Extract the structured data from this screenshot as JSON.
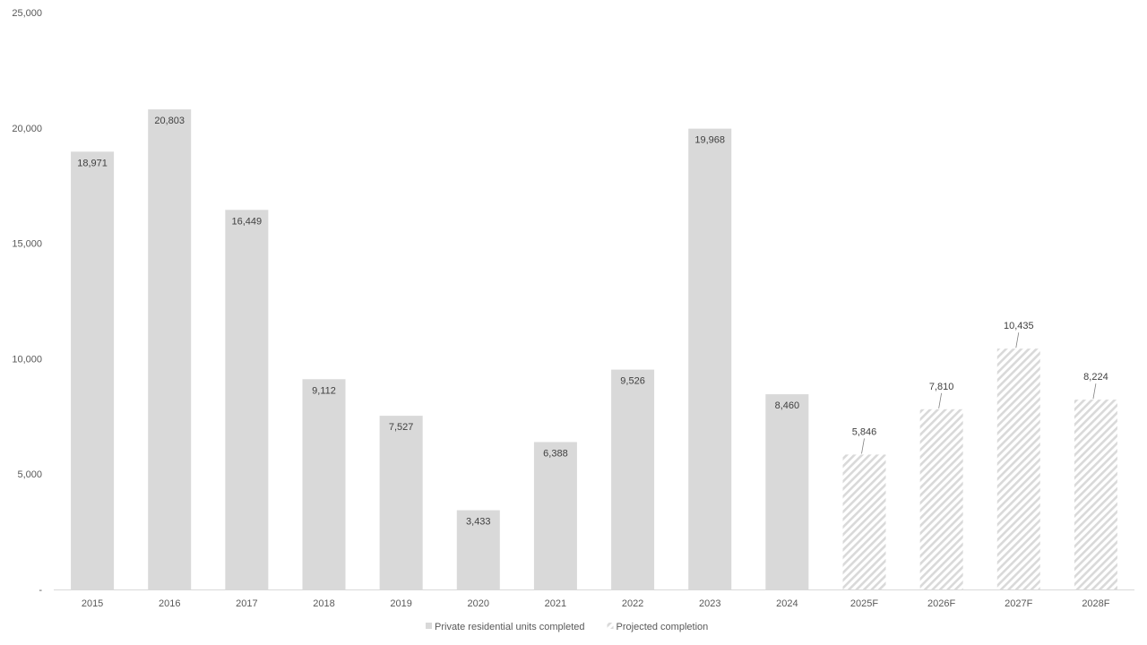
{
  "chart_data": {
    "type": "bar",
    "categories": [
      "2015",
      "2016",
      "2017",
      "2018",
      "2019",
      "2020",
      "2021",
      "2022",
      "2023",
      "2024",
      "2025F",
      "2026F",
      "2027F",
      "2028F"
    ],
    "series": [
      {
        "name": "Private residential units completed",
        "values": [
          18971,
          20803,
          16449,
          9112,
          7527,
          3433,
          6388,
          9526,
          19968,
          8460,
          null,
          null,
          null,
          null
        ],
        "labels": [
          "18,971",
          "20,803",
          "16,449",
          "9,112",
          "7,527",
          "3,433",
          "6,388",
          "9,526",
          "19,968",
          "8,460",
          "",
          "",
          "",
          ""
        ],
        "color": "#d9d9d9",
        "pattern": "solid"
      },
      {
        "name": "Projected completion",
        "values": [
          null,
          null,
          null,
          null,
          null,
          null,
          null,
          null,
          null,
          null,
          5846,
          7810,
          10435,
          8224
        ],
        "labels": [
          "",
          "",
          "",
          "",
          "",
          "",
          "",
          "",
          "",
          "",
          "5,846",
          "7,810",
          "10,435",
          "8,224"
        ],
        "color": "#d9d9d9",
        "pattern": "diagonal-hatch"
      }
    ],
    "y_ticks": [
      0,
      5000,
      10000,
      15000,
      20000,
      25000
    ],
    "y_tick_labels": [
      "-",
      "5,000",
      "10,000",
      "15,000",
      "20,000",
      "25,000"
    ],
    "ylim": [
      0,
      25000
    ],
    "grid": false,
    "legend_position": "bottom-center",
    "colors": {
      "bar": "#d9d9d9",
      "axis": "#d9d9d9",
      "tick_text": "#595959",
      "label_text": "#404040"
    }
  }
}
